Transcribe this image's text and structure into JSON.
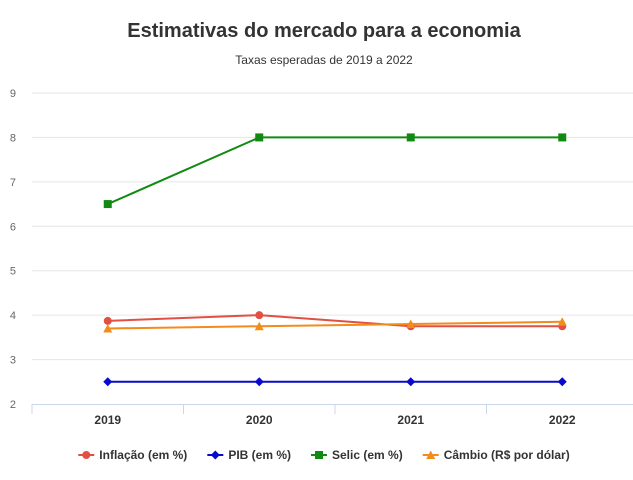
{
  "chart_data": {
    "type": "line",
    "title": "Estimativas do mercado para a economia",
    "subtitle": "Taxas esperadas de 2019 a 2022",
    "categories": [
      "2019",
      "2020",
      "2021",
      "2022"
    ],
    "ylim": [
      2,
      9
    ],
    "yticks": [
      "2",
      "3",
      "4",
      "5",
      "6",
      "7",
      "8",
      "9"
    ],
    "grid": true,
    "legend_position": "bottom",
    "series": [
      {
        "name": "Inflação (em %)",
        "color": "#e05044",
        "marker": "circle",
        "values": [
          3.87,
          4.0,
          3.75,
          3.75
        ]
      },
      {
        "name": "PIB (em %)",
        "color": "#0a0acc",
        "marker": "diamond",
        "values": [
          2.5,
          2.5,
          2.5,
          2.5
        ]
      },
      {
        "name": "Selic (em %)",
        "color": "#118a11",
        "marker": "square",
        "values": [
          6.5,
          8.0,
          8.0,
          8.0
        ]
      },
      {
        "name": "Câmbio (R$ por dólar)",
        "color": "#f28c1a",
        "marker": "triangle",
        "values": [
          3.7,
          3.75,
          3.8,
          3.85
        ]
      }
    ]
  }
}
